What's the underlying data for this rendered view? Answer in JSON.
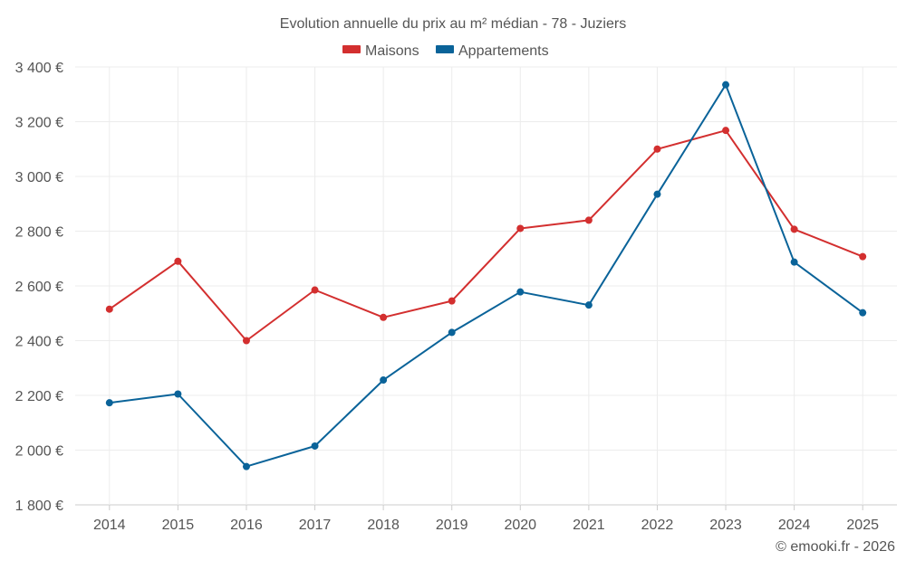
{
  "chart_data": {
    "type": "line",
    "title": "Evolution annuelle du prix au m² médian - 78 - Juziers",
    "categories": [
      "2014",
      "2015",
      "2016",
      "2017",
      "2018",
      "2019",
      "2020",
      "2021",
      "2022",
      "2023",
      "2024",
      "2025"
    ],
    "ylim": [
      1800,
      3400
    ],
    "yticks": [
      1800,
      2000,
      2200,
      2400,
      2600,
      2800,
      3000,
      3200,
      3400
    ],
    "ytick_labels": [
      "1 800 €",
      "2 000 €",
      "2 200 €",
      "2 400 €",
      "2 600 €",
      "2 800 €",
      "3 000 €",
      "3 200 €",
      "3 400 €"
    ],
    "grid": true,
    "legend_position": "top-center",
    "series": [
      {
        "name": "Maisons",
        "color": "#d32f2f",
        "values": [
          2515,
          2690,
          2400,
          2585,
          2485,
          2545,
          2810,
          2840,
          3100,
          3168,
          2807,
          2707
        ]
      },
      {
        "name": "Appartements",
        "color": "#0a6399",
        "values": [
          2173,
          2205,
          1940,
          2015,
          2256,
          2430,
          2578,
          2530,
          2935,
          3335,
          2687,
          2502
        ]
      }
    ],
    "credit": "© emooki.fr - 2026"
  }
}
